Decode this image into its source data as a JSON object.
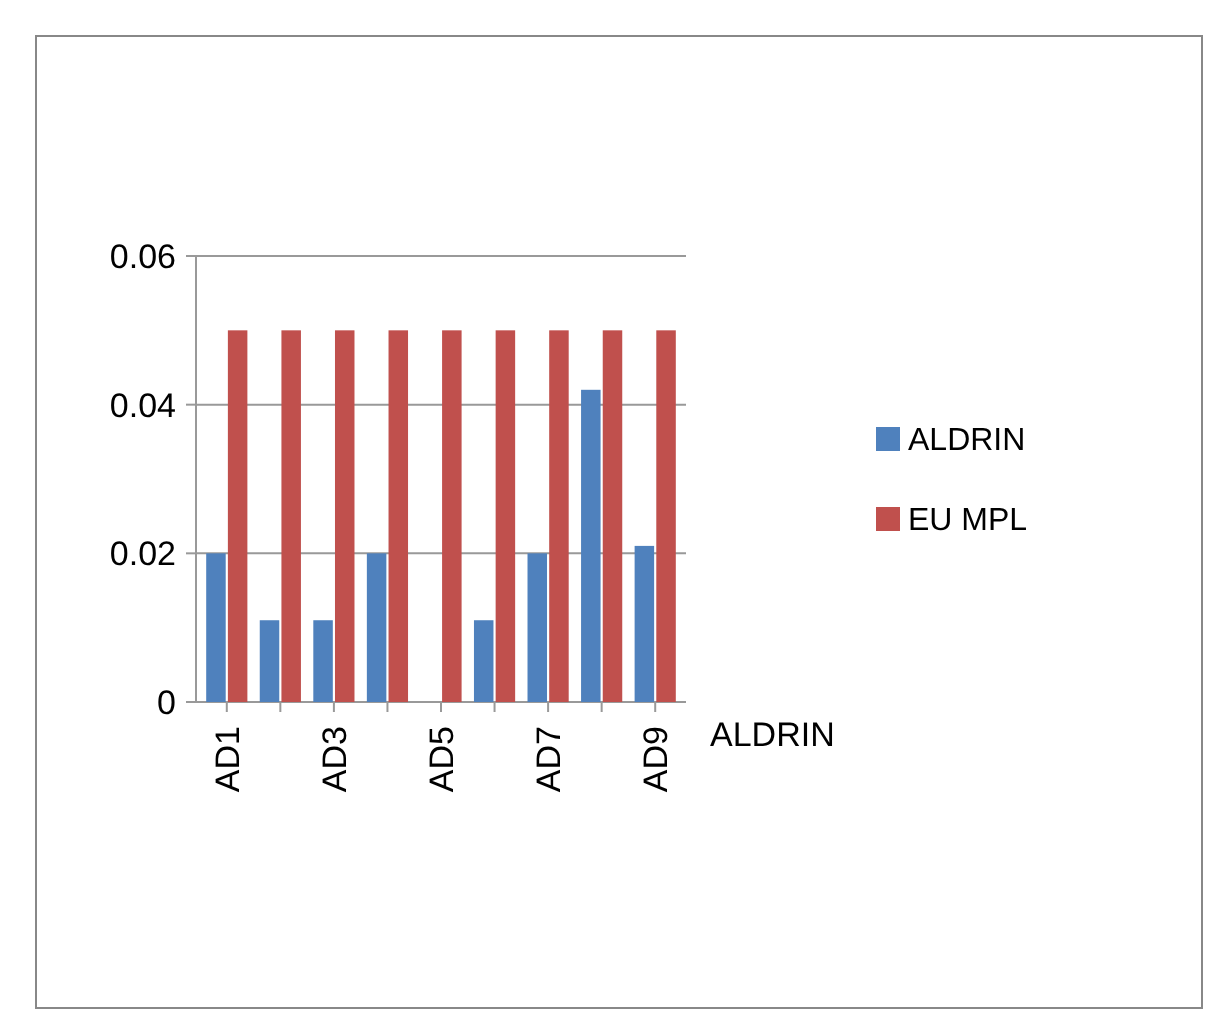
{
  "chart_data": {
    "type": "bar",
    "categories": [
      "AD1",
      null,
      "AD3",
      null,
      "AD5",
      null,
      "AD7",
      null,
      "AD9"
    ],
    "series": [
      {
        "name": "ALDRIN",
        "color": "#4f81bd",
        "values": [
          0.02,
          0.011,
          0.011,
          0.02,
          0,
          0.011,
          0.02,
          0.042,
          0.021
        ]
      },
      {
        "name": "EU MPL",
        "color": "#c0504d",
        "values": [
          0.05,
          0.05,
          0.05,
          0.05,
          0.05,
          0.05,
          0.05,
          0.05,
          0.05
        ]
      }
    ],
    "ylim": [
      0,
      0.06
    ],
    "yticks": [
      0,
      0.02,
      0.04,
      0.06
    ],
    "grid": "y",
    "legend": "right",
    "annotations": [
      "ALDRIN"
    ]
  }
}
